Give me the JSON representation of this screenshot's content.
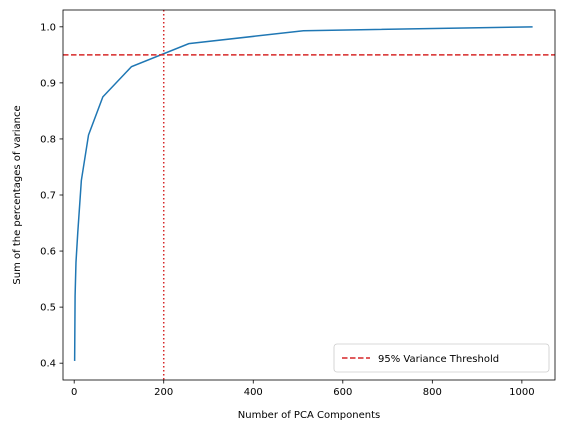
{
  "chart_data": {
    "type": "line",
    "xlabel": "Number of PCA Components",
    "ylabel": "Sum of the percentages of variance",
    "xlim": [
      -25,
      1074
    ],
    "ylim": [
      0.37,
      1.03
    ],
    "xticks": [
      0,
      200,
      400,
      600,
      800,
      1000
    ],
    "yticks": [
      0.4,
      0.5,
      0.6,
      0.7,
      0.8,
      0.9,
      1.0
    ],
    "xtick_labels": [
      "0",
      "200",
      "400",
      "600",
      "800",
      "1000"
    ],
    "ytick_labels": [
      "0.4",
      "0.5",
      "0.6",
      "0.7",
      "0.8",
      "0.9",
      "1.0"
    ],
    "series": [
      {
        "color": "#1f77b4",
        "x": [
          1,
          2,
          4,
          8,
          16,
          32,
          64,
          128,
          256,
          512,
          1024
        ],
        "y": [
          0.404,
          0.52,
          0.58,
          0.633,
          0.726,
          0.807,
          0.875,
          0.929,
          0.97,
          0.993,
          1.0
        ]
      }
    ],
    "hline": {
      "y": 0.95,
      "color": "#d62728",
      "style": "dashed",
      "label": "95% Variance Threshold"
    },
    "vline": {
      "x": 200,
      "color": "#d62728",
      "style": "dotted"
    },
    "legend": {
      "position": "bottom-right",
      "entries": [
        "95% Variance Threshold"
      ]
    },
    "grid": false
  }
}
